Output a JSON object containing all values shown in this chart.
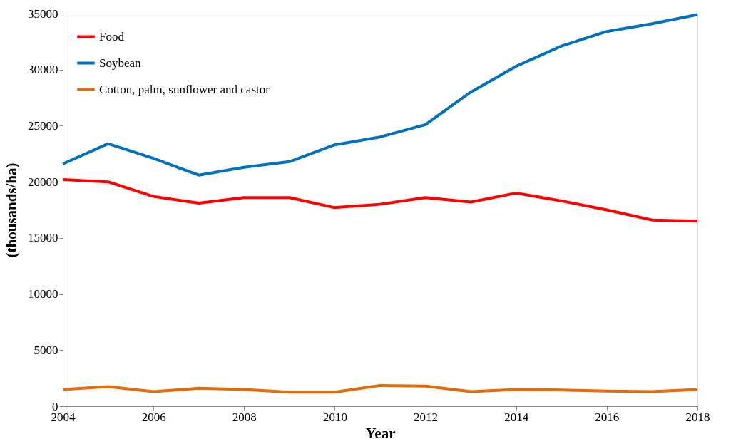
{
  "chart_data": {
    "type": "line",
    "xlabel": "Year",
    "ylabel": "(thousands/ha)",
    "x": [
      2004,
      2005,
      2006,
      2007,
      2008,
      2009,
      2010,
      2011,
      2012,
      2013,
      2014,
      2015,
      2016,
      2017,
      2018
    ],
    "series": [
      {
        "name": "Food",
        "color": "#ff0000",
        "values": [
          20200,
          20000,
          18700,
          18100,
          18600,
          18600,
          17700,
          18000,
          18600,
          18200,
          19000,
          18300,
          17500,
          16600,
          16500
        ]
      },
      {
        "name": "Soybean",
        "color": "#0070c0",
        "values": [
          21600,
          23400,
          22100,
          20600,
          21300,
          21800,
          23300,
          24000,
          25100,
          28000,
          30300,
          32100,
          33400,
          34100,
          34900
        ]
      },
      {
        "name": "Cotton, palm, sunflower and castor",
        "color": "#e36c09",
        "values": [
          1500,
          1750,
          1300,
          1600,
          1500,
          1250,
          1250,
          1850,
          1800,
          1300,
          1500,
          1450,
          1350,
          1300,
          1500
        ]
      }
    ],
    "xlim": [
      2004,
      2018
    ],
    "xticks": [
      2004,
      2006,
      2008,
      2010,
      2012,
      2014,
      2016,
      2018
    ],
    "ylim": [
      0,
      35000
    ],
    "yticks": [
      0,
      5000,
      10000,
      15000,
      20000,
      25000,
      30000,
      35000
    ],
    "grid": false,
    "legend": "top left",
    "marker": "none",
    "line_style": "solid"
  }
}
